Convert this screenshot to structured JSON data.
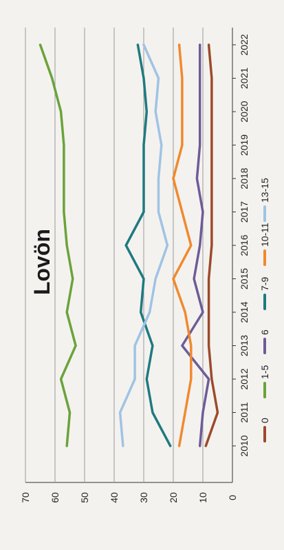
{
  "chart_data": {
    "type": "line",
    "title": "Lovön",
    "x": [
      "2010",
      "2011",
      "2012",
      "2013",
      "2014",
      "2015",
      "2016",
      "2017",
      "2018",
      "2019",
      "2020",
      "2021",
      "2022"
    ],
    "xlabel": "",
    "ylabel": "",
    "ylim": [
      0,
      70
    ],
    "y_ticks": [
      "0",
      "10",
      "20",
      "30",
      "40",
      "50",
      "60",
      "70"
    ],
    "grid": true,
    "legend_position": "right",
    "series": [
      {
        "name": "0",
        "color": "#9c4a2c",
        "values": [
          9,
          5,
          7,
          8,
          8,
          8,
          7,
          7,
          7,
          7,
          7,
          7,
          8
        ]
      },
      {
        "name": "1-5",
        "color": "#6aa33a",
        "values": [
          56,
          55,
          58,
          53,
          56,
          54,
          56,
          57,
          57,
          57,
          58,
          61,
          65
        ]
      },
      {
        "name": "6",
        "color": "#6e5b97",
        "values": [
          11,
          10,
          8,
          17,
          10,
          13,
          11,
          10,
          12,
          11,
          11,
          11,
          11
        ]
      },
      {
        "name": "7-9",
        "color": "#1f7a80",
        "values": [
          21,
          27,
          29,
          27,
          31,
          30,
          36,
          30,
          30,
          30,
          29,
          30,
          32
        ]
      },
      {
        "name": "10-11",
        "color": "#f0892e",
        "values": [
          18,
          16,
          14,
          14,
          16,
          20,
          14,
          17,
          20,
          17,
          17,
          17,
          18
        ]
      },
      {
        "name": "13-15",
        "color": "#9fc3e4",
        "values": [
          37,
          38,
          33,
          33,
          28,
          26,
          22,
          25,
          25,
          24,
          26,
          25,
          30
        ]
      }
    ]
  }
}
